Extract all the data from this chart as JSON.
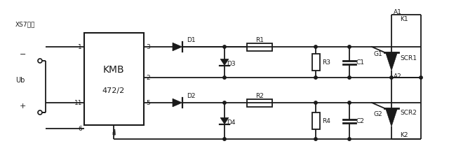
{
  "bg_color": "#ffffff",
  "lc": "#1a1a1a",
  "figsize": [
    6.4,
    2.3
  ],
  "dpi": 100,
  "labels": {
    "xs7": "XS7接口",
    "kmb": "KMB",
    "model": "472/2",
    "d1": "D1",
    "d2": "D2",
    "d3": "D3",
    "d4": "D4",
    "r1": "R1",
    "r2": "R2",
    "r3": "R3",
    "r4": "R4",
    "c1": "C1",
    "c2": "C2",
    "scr1": "SCR1",
    "scr2": "SCR2",
    "a1": "A1",
    "a2": "A2",
    "g1": "G1",
    "g2": "G2",
    "k1": "K1",
    "k2": "K2",
    "pin1": "1",
    "pin2": "2",
    "pin3": "3",
    "pin4": "4",
    "pin5": "5",
    "pin6": "6",
    "pin11": "11",
    "minus": "−",
    "plus": "+",
    "ub": "Ub"
  }
}
